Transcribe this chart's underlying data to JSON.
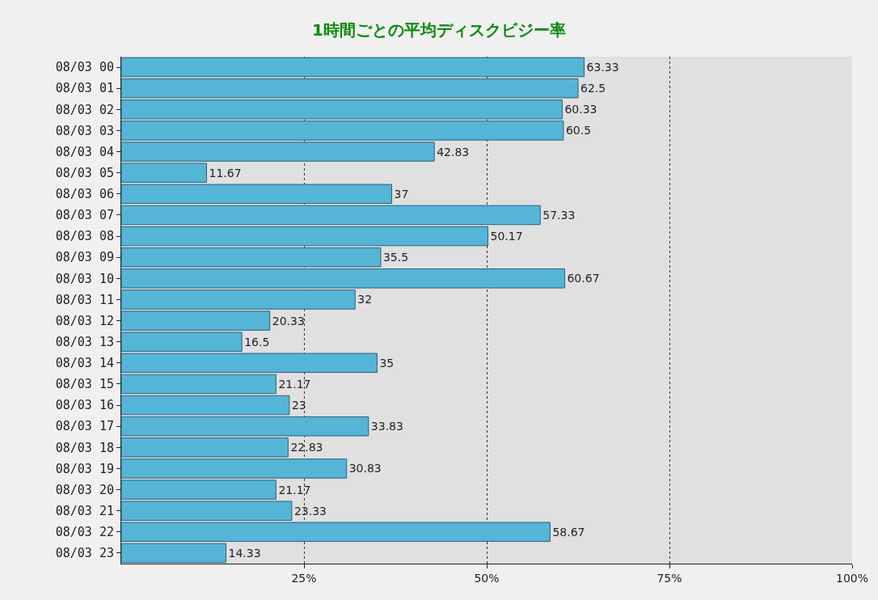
{
  "chart_data": {
    "type": "bar",
    "orientation": "horizontal",
    "title": "1時間ごとの平均ディスクビジー率",
    "categories": [
      "08/03 00",
      "08/03 01",
      "08/03 02",
      "08/03 03",
      "08/03 04",
      "08/03 05",
      "08/03 06",
      "08/03 07",
      "08/03 08",
      "08/03 09",
      "08/03 10",
      "08/03 11",
      "08/03 12",
      "08/03 13",
      "08/03 14",
      "08/03 15",
      "08/03 16",
      "08/03 17",
      "08/03 18",
      "08/03 19",
      "08/03 20",
      "08/03 21",
      "08/03 22",
      "08/03 23"
    ],
    "values": [
      63.33,
      62.5,
      60.33,
      60.5,
      42.83,
      11.67,
      37,
      57.33,
      50.17,
      35.5,
      60.67,
      32,
      20.33,
      16.5,
      35,
      21.17,
      23,
      33.83,
      22.83,
      30.83,
      21.17,
      23.33,
      58.67,
      14.33
    ],
    "color": "#55b5d6",
    "xlim": [
      0,
      100
    ],
    "xticks": [
      {
        "value": 25,
        "label": "25%"
      },
      {
        "value": 50,
        "label": "50%"
      },
      {
        "value": 75,
        "label": "75%"
      },
      {
        "value": 100,
        "label": "100%"
      }
    ],
    "grid": "x",
    "data_labels": true
  }
}
